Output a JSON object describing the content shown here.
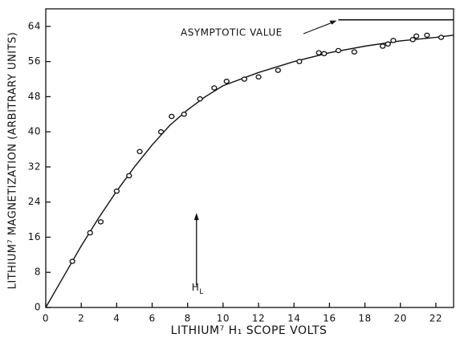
{
  "chart_data": {
    "type": "scatter",
    "xlabel": "LITHIUM⁷ H₁ SCOPE VOLTS",
    "ylabel": "LITHIUM⁷ MAGNETIZATION (ARBITRARY UNITS)",
    "xlim": [
      0,
      23
    ],
    "ylim": [
      0,
      68
    ],
    "xticks": [
      0,
      2,
      4,
      6,
      8,
      10,
      12,
      14,
      16,
      18,
      20,
      22
    ],
    "yticks": [
      0,
      8,
      16,
      24,
      32,
      40,
      48,
      56,
      64
    ],
    "color": "#111111",
    "points": {
      "x": [
        1.5,
        2.5,
        3.1,
        4,
        4.7,
        5.3,
        6.5,
        7.1,
        7.8,
        8.7,
        9.5,
        10.2,
        11.2,
        12,
        13.1,
        14.3,
        15.4,
        15.7,
        16.5,
        17.4,
        19,
        19.3,
        19.6,
        20.7,
        20.9,
        21.5,
        22.3
      ],
      "y": [
        10.5,
        17,
        19.5,
        26.5,
        30,
        35.5,
        40,
        43.5,
        44,
        47.5,
        50,
        51.5,
        52,
        52.5,
        54,
        56,
        58,
        57.8,
        58.5,
        58.2,
        59.5,
        60,
        60.8,
        61,
        61.8,
        62,
        61.5
      ]
    },
    "curve": {
      "x": [
        0,
        1,
        2,
        3,
        4,
        5,
        6,
        7,
        8,
        9,
        10,
        12,
        14,
        16,
        18,
        20,
        22,
        23
      ],
      "y": [
        0,
        7,
        14,
        20.5,
        26.5,
        32,
        37,
        41.5,
        45,
        48,
        50.5,
        53.5,
        56,
        58,
        59.5,
        60.7,
        61.5,
        62
      ]
    },
    "asymptote": {
      "text": "ASYMPTOTIC VALUE",
      "value": 65.5,
      "x_start": 16.5
    },
    "marker": {
      "text": "H",
      "subscript": "L",
      "x": 8.5,
      "y_from": 5,
      "y_to": 21
    }
  }
}
